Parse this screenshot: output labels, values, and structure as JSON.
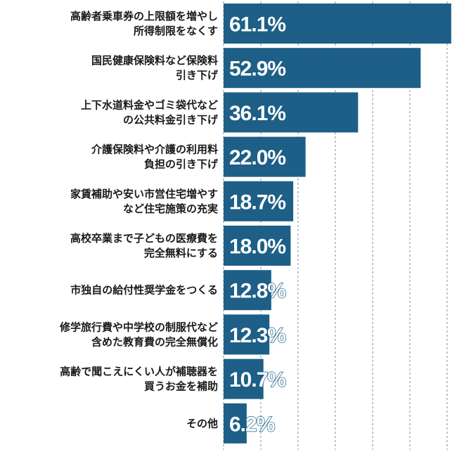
{
  "chart_data": {
    "type": "bar",
    "orientation": "horizontal",
    "title": "",
    "xlabel": "",
    "ylabel": "",
    "xlim": [
      0,
      70
    ],
    "grid": true,
    "unit": "%",
    "bar_color": "#1d5f86",
    "categories": [
      [
        "高齢者乗車券の上限額を増やし",
        "所得制限をなくす"
      ],
      [
        "国民健康保険料など保険料",
        "引き下げ"
      ],
      [
        "上下水道料金やゴミ袋代など",
        "の公共料金引き下げ"
      ],
      [
        "介護保険料や介護の利用料",
        "負担の引き下げ"
      ],
      [
        "家賃補助や安い市営住宅増やす",
        "など住宅施策の充実"
      ],
      [
        "高校卒業まで子どもの医療費を",
        "完全無料にする"
      ],
      [
        "市独自の給付性奨学金をつくる"
      ],
      [
        "修学旅行費や中学校の制服代など",
        "含めた教育費の完全無償化"
      ],
      [
        "高齢で聞こえにくい人が補聴器を",
        "買うお金を補助"
      ],
      [
        "その他"
      ]
    ],
    "values": [
      61.1,
      52.9,
      36.1,
      22.0,
      18.7,
      18.0,
      12.8,
      12.3,
      10.7,
      6.2
    ],
    "value_labels": [
      "61.1%",
      "52.9%",
      "36.1%",
      "22.0%",
      "18.7%",
      "18.0%",
      "12.8%",
      "12.3%",
      "10.7%",
      "6.2%"
    ]
  }
}
